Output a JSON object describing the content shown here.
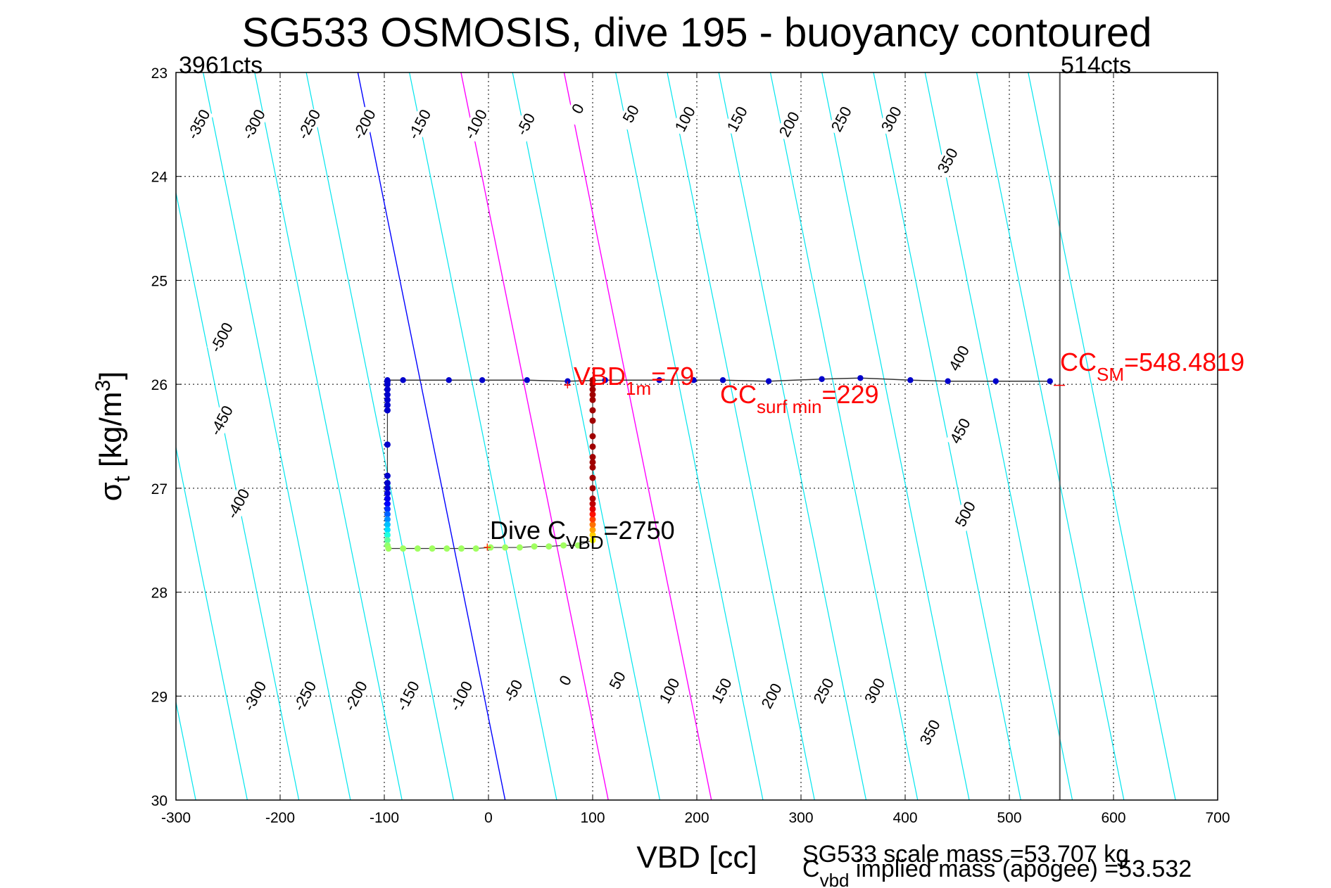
{
  "chart_data": {
    "type": "scatter",
    "title": "SG533 OSMOSIS, dive 195 - buoyancy contoured",
    "xlabel": "VBD [cc]",
    "ylabel_main": "σ",
    "ylabel_sub": "t",
    "ylabel_rest": " [kg/m",
    "ylabel_sup": "3",
    "ylabel_end": "]",
    "xlim": [
      -300,
      700
    ],
    "ylim": [
      23,
      30
    ],
    "y_reversed": true,
    "grid": true,
    "x_ticks": [
      -300,
      -200,
      -100,
      0,
      100,
      200,
      300,
      400,
      500,
      600,
      700
    ],
    "x_tick_labels": [
      "-300",
      "-200",
      "-100",
      "0",
      "100",
      "200",
      "300",
      "400",
      "500",
      "600",
      "700"
    ],
    "y_ticks": [
      23,
      24,
      25,
      26,
      27,
      28,
      29,
      30
    ],
    "y_tick_labels": [
      "23",
      "24",
      "25",
      "26",
      "27",
      "28",
      "29",
      "30"
    ],
    "top_left_label": "3961cts",
    "top_right_label": "514cts",
    "vline_x": 548.48,
    "contour_slope_vbd_per_sigma": 20.2,
    "contour_spacing_vbd": 49.5,
    "contour_zero_x_at_sigma30": 16,
    "contour_levels": [
      -800,
      -750,
      -700,
      -650,
      -600,
      -550,
      -500,
      -450,
      -400,
      -350,
      -300,
      -250,
      -200,
      -150,
      -100,
      -50,
      0,
      50,
      100,
      150,
      200,
      250,
      300,
      350,
      400,
      450,
      500,
      550,
      600,
      650
    ],
    "highlight_levels": [
      {
        "level": 0,
        "color": "#0000ff"
      },
      {
        "level": 100,
        "color": "#ff00ff"
      },
      {
        "level": 200,
        "color": "#ff00ff"
      }
    ],
    "contour_labels": [
      {
        "text": "-350",
        "x": -278,
        "y": 23.5
      },
      {
        "text": "-300",
        "x": -225,
        "y": 23.5
      },
      {
        "text": "-250",
        "x": -172,
        "y": 23.5
      },
      {
        "text": "-200",
        "x": -119,
        "y": 23.5
      },
      {
        "text": "-150",
        "x": -66,
        "y": 23.5
      },
      {
        "text": "-100",
        "x": -12,
        "y": 23.5
      },
      {
        "text": "-50",
        "x": 36,
        "y": 23.5
      },
      {
        "text": "0",
        "x": 86,
        "y": 23.35
      },
      {
        "text": "50",
        "x": 137,
        "y": 23.4
      },
      {
        "text": "100",
        "x": 189,
        "y": 23.45
      },
      {
        "text": "150",
        "x": 239,
        "y": 23.45
      },
      {
        "text": "200",
        "x": 289,
        "y": 23.5
      },
      {
        "text": "250",
        "x": 339,
        "y": 23.45
      },
      {
        "text": "300",
        "x": 387,
        "y": 23.45
      },
      {
        "text": "350",
        "x": 441,
        "y": 23.85
      },
      {
        "text": "-500",
        "x": -256,
        "y": 25.55
      },
      {
        "text": "-450",
        "x": -256,
        "y": 26.35
      },
      {
        "text": "-400",
        "x": -240,
        "y": 27.15
      },
      {
        "text": "400",
        "x": 452,
        "y": 25.75
      },
      {
        "text": "450",
        "x": 453,
        "y": 26.45
      },
      {
        "text": "500",
        "x": 458,
        "y": 27.25
      },
      {
        "text": "-300",
        "x": -224,
        "y": 29.0
      },
      {
        "text": "-250",
        "x": -176,
        "y": 29.0
      },
      {
        "text": "-200",
        "x": -127,
        "y": 29.0
      },
      {
        "text": "-150",
        "x": -77,
        "y": 29.0
      },
      {
        "text": "-100",
        "x": -26,
        "y": 29.0
      },
      {
        "text": "-50",
        "x": 24,
        "y": 28.95
      },
      {
        "text": "0",
        "x": 74,
        "y": 28.85
      },
      {
        "text": "50",
        "x": 124,
        "y": 28.85
      },
      {
        "text": "100",
        "x": 174,
        "y": 28.95
      },
      {
        "text": "150",
        "x": 224,
        "y": 28.95
      },
      {
        "text": "200",
        "x": 272,
        "y": 29.0
      },
      {
        "text": "250",
        "x": 322,
        "y": 28.95
      },
      {
        "text": "300",
        "x": 371,
        "y": 28.95
      },
      {
        "text": "350",
        "x": 424,
        "y": 29.35
      }
    ],
    "dive_trace": [
      {
        "x": -97,
        "y": 25.97,
        "c": "#0000cc"
      },
      {
        "x": -97,
        "y": 26.0,
        "c": "#0000cc"
      },
      {
        "x": -97,
        "y": 26.05,
        "c": "#0000cc"
      },
      {
        "x": -97,
        "y": 26.1,
        "c": "#0000cc"
      },
      {
        "x": -97,
        "y": 26.15,
        "c": "#0000cc"
      },
      {
        "x": -97,
        "y": 26.2,
        "c": "#0000cc"
      },
      {
        "x": -97,
        "y": 26.25,
        "c": "#0000cc"
      },
      {
        "x": -97,
        "y": 26.58,
        "c": "#0000cc"
      },
      {
        "x": -97,
        "y": 26.88,
        "c": "#0000cc"
      },
      {
        "x": -97,
        "y": 26.95,
        "c": "#0000cc"
      },
      {
        "x": -97,
        "y": 27.0,
        "c": "#0000cc"
      },
      {
        "x": -97,
        "y": 27.05,
        "c": "#0000dd"
      },
      {
        "x": -97,
        "y": 27.1,
        "c": "#0000ee"
      },
      {
        "x": -97,
        "y": 27.15,
        "c": "#0000ff"
      },
      {
        "x": -97,
        "y": 27.2,
        "c": "#0030ff"
      },
      {
        "x": -97,
        "y": 27.25,
        "c": "#0060ff"
      },
      {
        "x": -97,
        "y": 27.3,
        "c": "#0090ff"
      },
      {
        "x": -97,
        "y": 27.35,
        "c": "#00c0ff"
      },
      {
        "x": -97,
        "y": 27.4,
        "c": "#00e0ff"
      },
      {
        "x": -97,
        "y": 27.45,
        "c": "#20ffe0"
      },
      {
        "x": -97,
        "y": 27.5,
        "c": "#60ffa0"
      },
      {
        "x": -97,
        "y": 27.55,
        "c": "#90ff70"
      },
      {
        "x": -96,
        "y": 27.58,
        "c": "#a0ff60"
      },
      {
        "x": -82,
        "y": 27.58,
        "c": "#a0ff60"
      },
      {
        "x": -68,
        "y": 27.58,
        "c": "#a0ff60"
      },
      {
        "x": -54,
        "y": 27.58,
        "c": "#a0ff60"
      },
      {
        "x": -40,
        "y": 27.58,
        "c": "#a0ff60"
      },
      {
        "x": -26,
        "y": 27.58,
        "c": "#a0ff60"
      },
      {
        "x": -12,
        "y": 27.58,
        "c": "#a0ff60"
      },
      {
        "x": 2,
        "y": 27.57,
        "c": "#a0ff60"
      },
      {
        "x": 16,
        "y": 27.57,
        "c": "#a0ff60"
      },
      {
        "x": 30,
        "y": 27.57,
        "c": "#a0ff60"
      },
      {
        "x": 44,
        "y": 27.56,
        "c": "#a0ff60"
      },
      {
        "x": 58,
        "y": 27.56,
        "c": "#a0ff60"
      },
      {
        "x": 72,
        "y": 27.55,
        "c": "#a0ff60"
      },
      {
        "x": 86,
        "y": 27.55,
        "c": "#a0ff60"
      },
      {
        "x": 100,
        "y": 27.5,
        "c": "#ffff00"
      },
      {
        "x": 100,
        "y": 27.45,
        "c": "#ffd000"
      },
      {
        "x": 100,
        "y": 27.4,
        "c": "#ffa000"
      },
      {
        "x": 100,
        "y": 27.35,
        "c": "#ff7000"
      },
      {
        "x": 100,
        "y": 27.3,
        "c": "#ff4000"
      },
      {
        "x": 100,
        "y": 27.25,
        "c": "#ff1000"
      },
      {
        "x": 100,
        "y": 27.2,
        "c": "#e00000"
      },
      {
        "x": 100,
        "y": 27.15,
        "c": "#c00000"
      },
      {
        "x": 100,
        "y": 27.1,
        "c": "#b00000"
      },
      {
        "x": 100,
        "y": 27.0,
        "c": "#a00000"
      },
      {
        "x": 100,
        "y": 26.9,
        "c": "#a00000"
      },
      {
        "x": 100,
        "y": 26.8,
        "c": "#a00000"
      },
      {
        "x": 100,
        "y": 26.75,
        "c": "#a00000"
      },
      {
        "x": 100,
        "y": 26.7,
        "c": "#a00000"
      },
      {
        "x": 100,
        "y": 26.6,
        "c": "#a00000"
      },
      {
        "x": 100,
        "y": 26.5,
        "c": "#a00000"
      },
      {
        "x": 100,
        "y": 26.35,
        "c": "#a00000"
      },
      {
        "x": 100,
        "y": 26.25,
        "c": "#a00000"
      },
      {
        "x": 100,
        "y": 26.15,
        "c": "#a00000"
      },
      {
        "x": 100,
        "y": 26.1,
        "c": "#a00000"
      },
      {
        "x": 100,
        "y": 26.05,
        "c": "#a00000"
      },
      {
        "x": 100,
        "y": 26.0,
        "c": "#a00000"
      },
      {
        "x": 100,
        "y": 25.96,
        "c": "#a00000"
      }
    ],
    "surface_trace": [
      {
        "x": -97,
        "y": 25.96
      },
      {
        "x": -82,
        "y": 25.96
      },
      {
        "x": -38,
        "y": 25.96
      },
      {
        "x": -6,
        "y": 25.96
      },
      {
        "x": 37,
        "y": 25.96
      },
      {
        "x": 76,
        "y": 25.97
      },
      {
        "x": 112,
        "y": 25.96
      },
      {
        "x": 164,
        "y": 25.96
      },
      {
        "x": 197,
        "y": 25.96
      },
      {
        "x": 225,
        "y": 25.96
      },
      {
        "x": 269,
        "y": 25.97
      },
      {
        "x": 320,
        "y": 25.95
      },
      {
        "x": 357,
        "y": 25.94
      },
      {
        "x": 405,
        "y": 25.96
      },
      {
        "x": 441,
        "y": 25.97
      },
      {
        "x": 487,
        "y": 25.97
      },
      {
        "x": 539,
        "y": 25.97
      }
    ],
    "annotations": {
      "vbd1m": {
        "main": "VBD",
        "sub": "1m",
        "rest": "=79",
        "color": "#ff0000"
      },
      "ccsurf": {
        "main": "CC",
        "sub": "surf min",
        "rest": "=229",
        "color": "#ff0000"
      },
      "ccsm": {
        "main": "CC",
        "sub": "SM",
        "rest": "=548.4819",
        "color": "#ff0000"
      },
      "divec": {
        "main": "Dive C",
        "sub": "VBD",
        "rest": "=2750",
        "color": "#000000"
      }
    },
    "footer_line1": "SG533 scale mass =53.707 kg",
    "footer_line2_main": "C",
    "footer_line2_sub": "vbd",
    "footer_line2_rest": " implied mass (apogee) =53.532"
  }
}
